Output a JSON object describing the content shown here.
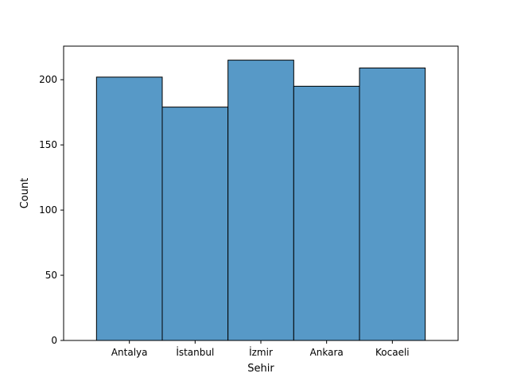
{
  "chart_data": {
    "type": "bar",
    "categories": [
      "Antalya",
      "İstanbul",
      "İzmir",
      "Ankara",
      "Kocaeli"
    ],
    "values": [
      202,
      179,
      215,
      195,
      209
    ],
    "xlabel": "Sehir",
    "ylabel": "Count",
    "ylim": [
      0,
      225.75
    ],
    "yticks": [
      0,
      50,
      100,
      150,
      200
    ],
    "bar_color": "#5799c7",
    "edge_color": "#000000",
    "grid": false
  }
}
